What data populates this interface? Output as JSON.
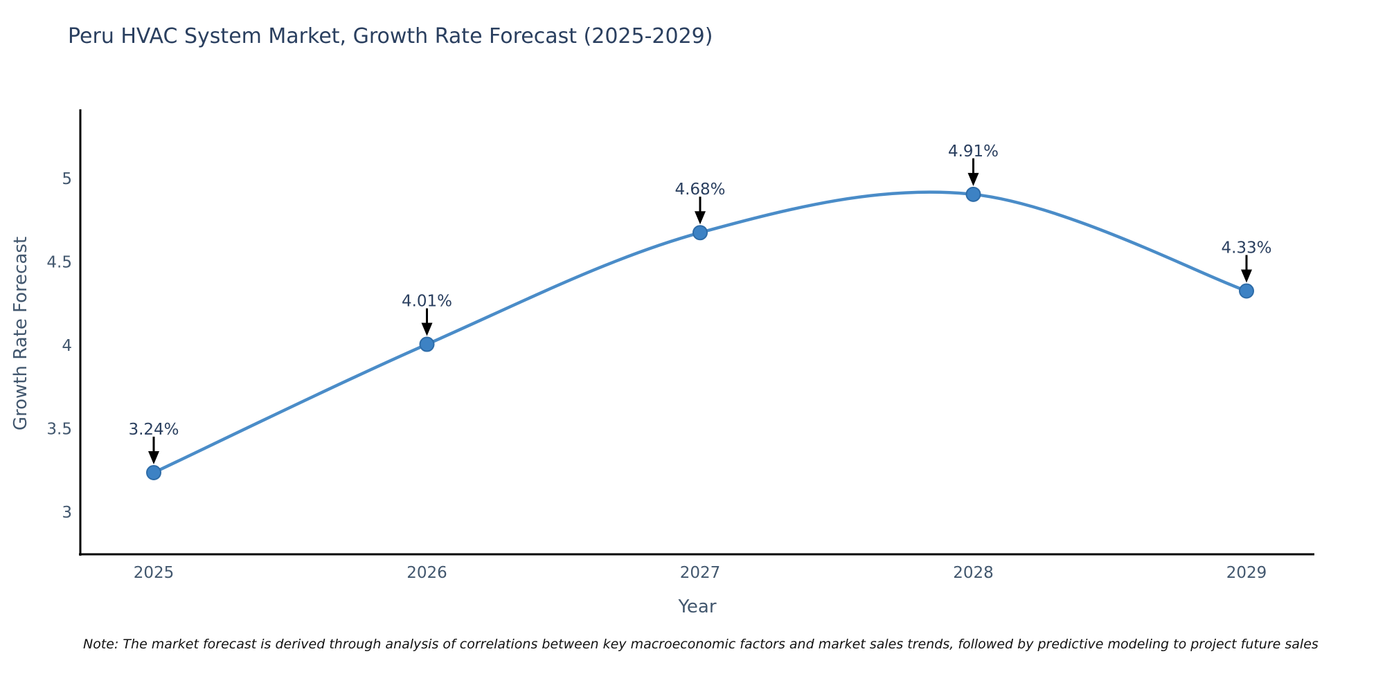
{
  "chart_data": {
    "type": "line",
    "title": "Peru HVAC System Market, Growth Rate Forecast (2025-2029)",
    "xlabel": "Year",
    "ylabel": "Growth Rate Forecast",
    "categories": [
      "2025",
      "2026",
      "2027",
      "2028",
      "2029"
    ],
    "series": [
      {
        "name": "Growth Rate Forecast",
        "values": [
          3.24,
          4.01,
          4.68,
          4.91,
          4.33
        ]
      }
    ],
    "point_labels": [
      "3.24%",
      "4.01%",
      "4.68%",
      "4.91%",
      "4.33%"
    ],
    "ytick_labels": [
      "3",
      "3.5",
      "4",
      "4.5",
      "5"
    ],
    "ytick_values": [
      3,
      3.5,
      4,
      4.5,
      5
    ],
    "ylim": [
      2.75,
      5.42
    ],
    "grid": false,
    "legend_position": "none",
    "line_shape": "spline",
    "annotation_style": "label-with-down-arrow",
    "colors": {
      "line": "#4a8cc8",
      "marker_fill": "#3d82c4",
      "marker_edge": "#2e6ca8",
      "axis_spine": "#000000",
      "title_text": "#2a3f5f",
      "tick_text": "#42576e",
      "annotation_text": "#2a3f5f",
      "arrow": "#000000",
      "background": "#ffffff"
    }
  },
  "note": {
    "text": "Note: The market forecast is derived through analysis of correlations between key macroeconomic factors and market sales trends, followed by predictive modeling to project future sales"
  }
}
